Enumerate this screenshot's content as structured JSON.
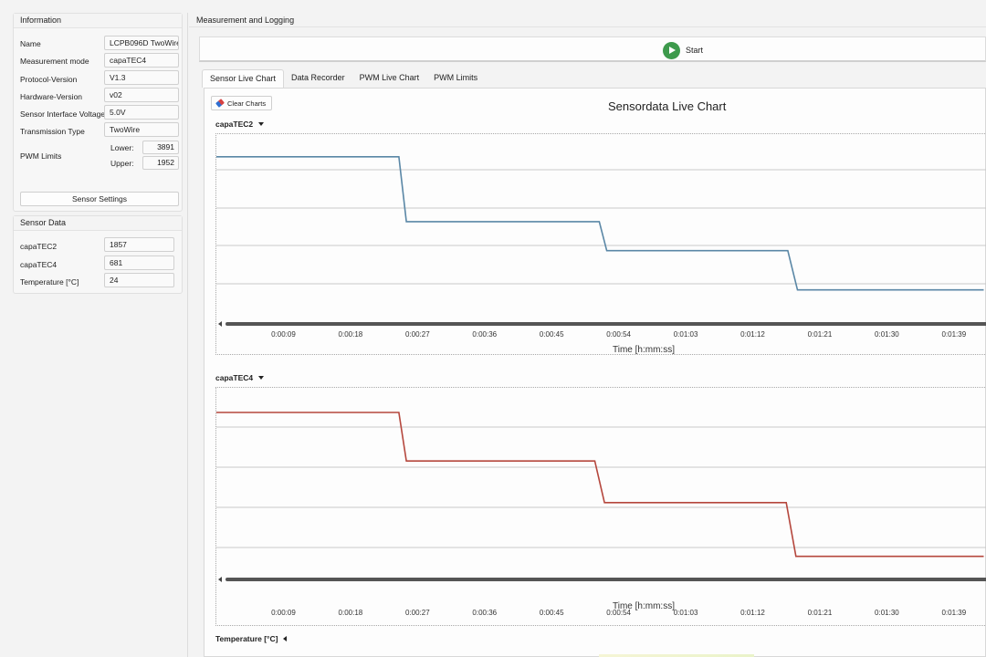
{
  "info": {
    "title": "Information",
    "rows": [
      {
        "label": "Name",
        "value": "LCPB096D TwoWire"
      },
      {
        "label": "Measurement mode",
        "value": "capaTEC4"
      },
      {
        "label": "Protocol-Version",
        "value": "V1.3"
      },
      {
        "label": "Hardware-Version",
        "value": "v02"
      },
      {
        "label": "Sensor Interface Voltage",
        "value": "5.0V"
      },
      {
        "label": "Transmission Type",
        "value": "TwoWire"
      }
    ],
    "pwm": {
      "label": "PWM Limits",
      "lower_label": "Lower:",
      "lower": "3891",
      "upper_label": "Upper:",
      "upper": "1952"
    },
    "settings_button": "Sensor Settings"
  },
  "sensor_data": {
    "title": "Sensor Data",
    "rows": [
      {
        "label": "capaTEC2",
        "value": "1857"
      },
      {
        "label": "capaTEC4",
        "value": "681"
      },
      {
        "label": "Temperature [°C]",
        "value": "24"
      }
    ]
  },
  "measurement": {
    "title": "Measurement and Logging",
    "start_label": "Start",
    "tabs": [
      "Sensor Live Chart",
      "Data Recorder",
      "PWM Live Chart",
      "PWM Limits"
    ],
    "active_tab": 0,
    "clear_button": "Clear Charts",
    "chart_title": "Sensordata Live Chart",
    "temperature_label": "Temperature [°C]"
  },
  "colors": {
    "capaTEC2": "#5a87a6",
    "capaTEC4": "#b5473d",
    "start": "#3d9a4c"
  },
  "chart_data": [
    {
      "type": "line",
      "series_label": "capaTEC2",
      "xlabel": "Time [h:mm:ss]",
      "x_ticks": [
        "0:00:09",
        "0:00:18",
        "0:00:27",
        "0:00:36",
        "0:00:45",
        "0:00:54",
        "0:01:03",
        "0:01:12",
        "0:01:21",
        "0:01:30",
        "0:01:39"
      ],
      "x_range_s": [
        0,
        103
      ],
      "y_range": [
        0,
        100
      ],
      "grid": "horizontal",
      "series": [
        {
          "x_s": [
            0,
            24.5,
            25.5,
            51.4,
            52.4,
            76.7,
            78,
            103
          ],
          "y": [
            91,
            91,
            53,
            53,
            36,
            36,
            13,
            13
          ]
        }
      ]
    },
    {
      "type": "line",
      "series_label": "capaTEC4",
      "xlabel": "Time [h:mm:ss]",
      "x_ticks": [
        "0:00:09",
        "0:00:18",
        "0:00:27",
        "0:00:36",
        "0:00:45",
        "0:00:54",
        "0:01:03",
        "0:01:12",
        "0:01:21",
        "0:01:30",
        "0:01:39"
      ],
      "x_range_s": [
        0,
        103
      ],
      "y_range": [
        0,
        100
      ],
      "grid": "horizontal",
      "series": [
        {
          "x_s": [
            0,
            24.5,
            25.5,
            50.8,
            52.1,
            76.5,
            77.8,
            103
          ],
          "y": [
            90,
            90,
            62,
            62,
            38,
            38,
            7,
            7
          ]
        }
      ]
    }
  ]
}
